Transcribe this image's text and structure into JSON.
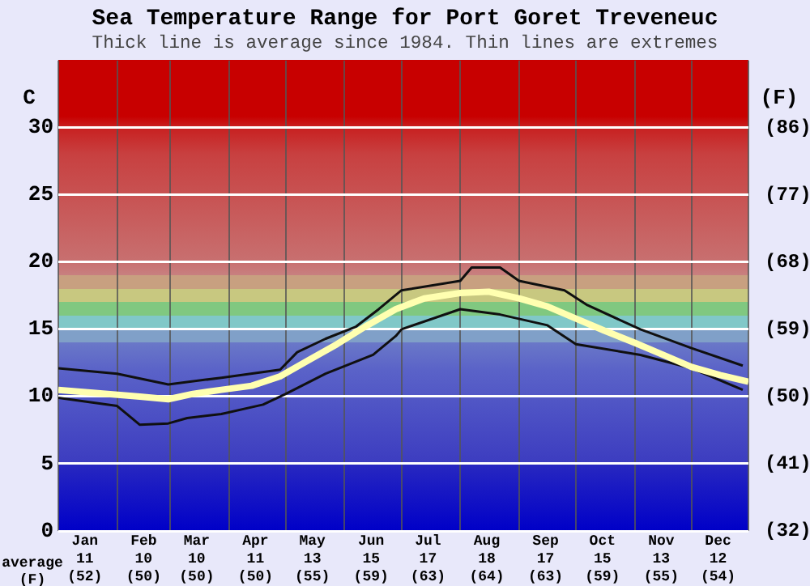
{
  "chart_data": {
    "type": "line",
    "title": "Sea Temperature Range for Port Goret Treveneuc",
    "subtitle": "Thick line is average since 1984. Thin lines are extremes",
    "ylabel": "C",
    "y2label": "(F)",
    "annotations": [
      "average\n(F)"
    ],
    "xlim": [
      "--01-01",
      "--12-31"
    ],
    "xticks": [
      {
        "value": "--01-01",
        "label": null
      },
      {
        "value": "--01-15",
        "label": "Jan\n11\n(52)"
      },
      {
        "value": "--02-01",
        "label": null
      },
      {
        "value": "--02-15",
        "label": "Feb\n10\n(50)"
      },
      {
        "value": "--03-01",
        "label": null
      },
      {
        "value": "--03-15",
        "label": "Mar\n10\n(50)"
      },
      {
        "value": "--04-01",
        "label": null
      },
      {
        "value": "--04-15",
        "label": "Apr\n11\n(50)"
      },
      {
        "value": "--05-01",
        "label": null
      },
      {
        "value": "--05-15",
        "label": "May\n13\n(55)"
      },
      {
        "value": "--06-01",
        "label": null
      },
      {
        "value": "--06-15",
        "label": "Jun\n15\n(59)"
      },
      {
        "value": "--07-01",
        "label": null
      },
      {
        "value": "--07-15",
        "label": "Jul\n17\n(63)"
      },
      {
        "value": "--08-01",
        "label": null
      },
      {
        "value": "--08-15",
        "label": "Aug\n18\n(64)"
      },
      {
        "value": "--09-01",
        "label": null
      },
      {
        "value": "--09-15",
        "label": "Sep\n17\n(63)"
      },
      {
        "value": "--10-01",
        "label": null
      },
      {
        "value": "--10-15",
        "label": "Oct\n15\n(59)"
      },
      {
        "value": "--11-01",
        "label": null
      },
      {
        "value": "--11-15",
        "label": "Nov\n13\n(55)"
      },
      {
        "value": "--12-01",
        "label": null
      },
      {
        "value": "--12-15",
        "label": "Dec\n12\n(54)"
      },
      {
        "value": "--12-31",
        "label": null
      }
    ],
    "ylim": [
      0,
      35
    ],
    "yticks": [
      0,
      5,
      10,
      15,
      20,
      25,
      30
    ],
    "y2lim": [
      32,
      95
    ],
    "y2ticks": [
      {
        "value": 32,
        "label": "(32)"
      },
      {
        "value": 41,
        "label": "(41)"
      },
      {
        "value": 50,
        "label": "(50)"
      },
      {
        "value": 59,
        "label": "(59)"
      },
      {
        "value": 68,
        "label": "(68)"
      },
      {
        "value": 77,
        "label": "(77)"
      },
      {
        "value": 86,
        "label": "(86)"
      }
    ],
    "grid": true,
    "legend": false,
    "marker": "none",
    "series": [
      {
        "color": "#101010",
        "x": [
          "--01-01",
          "--02-01",
          "--02-28",
          "--03-28",
          "--04-28",
          "--05-07",
          "--05-22",
          "--06-07",
          "--06-19",
          "--07-01",
          "--08-01",
          "--08-07",
          "--08-22",
          "--09-01",
          "--09-25",
          "--10-07",
          "--11-04",
          "--12-01",
          "--12-28"
        ],
        "values": [
          12.1,
          11.7,
          10.9,
          11.4,
          12.0,
          13.3,
          14.3,
          15.2,
          16.5,
          17.9,
          18.6,
          19.6,
          19.6,
          18.6,
          17.9,
          16.8,
          15.0,
          13.6,
          12.3
        ]
      },
      {
        "color": "#101010",
        "x": [
          "--01-01",
          "--02-01",
          "--02-13",
          "--02-28",
          "--03-10",
          "--03-28",
          "--04-19",
          "--05-01",
          "--05-22",
          "--06-16",
          "--06-28",
          "--07-01",
          "--08-01",
          "--08-22",
          "--09-16",
          "--10-01",
          "--11-04",
          "--12-01",
          "--12-28"
        ],
        "values": [
          9.9,
          9.3,
          7.9,
          8.0,
          8.4,
          8.7,
          9.4,
          10.2,
          11.7,
          13.1,
          14.5,
          15.0,
          16.5,
          16.1,
          15.3,
          13.9,
          13.1,
          12.1,
          10.5
        ]
      },
      {
        "color": "#ffffb0",
        "x": [
          "--01-01",
          "--02-13",
          "--02-28",
          "--03-13",
          "--03-28",
          "--04-13",
          "--04-28",
          "--05-13",
          "--05-28",
          "--06-13",
          "--06-28",
          "--07-13",
          "--08-01",
          "--08-16",
          "--09-01",
          "--09-16",
          "--10-01",
          "--10-16",
          "--11-01",
          "--11-16",
          "--12-01",
          "--12-16",
          "--12-31"
        ],
        "values": [
          10.5,
          10.0,
          9.8,
          10.2,
          10.5,
          10.8,
          11.5,
          12.7,
          13.9,
          15.3,
          16.5,
          17.3,
          17.7,
          17.8,
          17.3,
          16.7,
          15.8,
          14.9,
          14.0,
          13.1,
          12.2,
          11.6,
          11.1
        ]
      }
    ]
  }
}
